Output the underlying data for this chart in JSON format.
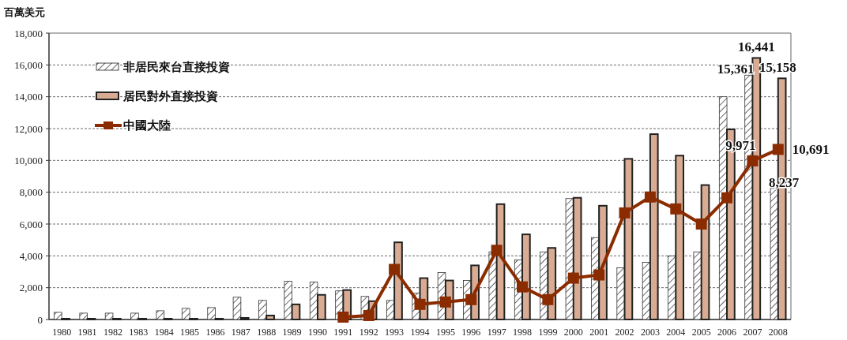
{
  "chart_data": {
    "type": "bar",
    "ylabel": "百萬美元",
    "categories": [
      "1980",
      "1981",
      "1982",
      "1983",
      "1984",
      "1985",
      "1986",
      "1987",
      "1988",
      "1989",
      "1990",
      "1991",
      "1992",
      "1993",
      "1994",
      "1995",
      "1996",
      "1997",
      "1998",
      "1999",
      "2000",
      "2001",
      "2002",
      "2003",
      "2004",
      "2005",
      "2006",
      "2007",
      "2008"
    ],
    "series": [
      {
        "name": "非居民來台直接投資",
        "color": "#333333",
        "values": [
          450,
          400,
          400,
          400,
          550,
          700,
          750,
          1400,
          1200,
          2400,
          2350,
          1800,
          1450,
          1200,
          1650,
          2950,
          2450,
          4250,
          3750,
          4250,
          7600,
          5150,
          3250,
          3600,
          4000,
          4250,
          14000,
          15361,
          8237
        ],
        "value_labels": [
          null,
          null,
          null,
          null,
          null,
          null,
          null,
          null,
          null,
          null,
          null,
          null,
          null,
          null,
          null,
          null,
          null,
          null,
          null,
          null,
          null,
          null,
          null,
          null,
          null,
          null,
          null,
          "15,361",
          "8,237"
        ]
      },
      {
        "name": "居民對外直接投資",
        "color": "#d9ab92",
        "values": [
          50,
          50,
          50,
          50,
          50,
          50,
          50,
          100,
          250,
          950,
          1550,
          1850,
          1150,
          4850,
          2600,
          2450,
          3400,
          7250,
          5350,
          4500,
          7650,
          7150,
          10100,
          11650,
          10300,
          8450,
          11950,
          16441,
          15158
        ],
        "value_labels": [
          null,
          null,
          null,
          null,
          null,
          null,
          null,
          null,
          null,
          null,
          null,
          null,
          null,
          null,
          null,
          null,
          null,
          null,
          null,
          null,
          null,
          null,
          null,
          null,
          null,
          null,
          null,
          "16,441",
          "15,158"
        ]
      },
      {
        "name": "中國大陸",
        "type": "line",
        "color": "#8b2b00",
        "marker": "square",
        "values": [
          null,
          null,
          null,
          null,
          null,
          null,
          null,
          null,
          null,
          null,
          null,
          150,
          250,
          3150,
          950,
          1100,
          1250,
          4350,
          2050,
          1250,
          2600,
          2800,
          6700,
          7700,
          6950,
          6000,
          7650,
          9971,
          10691
        ],
        "value_labels": [
          null,
          null,
          null,
          null,
          null,
          null,
          null,
          null,
          null,
          null,
          null,
          null,
          null,
          null,
          null,
          null,
          null,
          null,
          null,
          null,
          null,
          null,
          null,
          null,
          null,
          null,
          null,
          "9,971",
          "10,691"
        ]
      }
    ],
    "ylim": [
      0,
      18000
    ],
    "yticks": [
      {
        "value": 0,
        "label": "0"
      },
      {
        "value": 2000,
        "label": "2,000"
      },
      {
        "value": 4000,
        "label": "4,000"
      },
      {
        "value": 6000,
        "label": "6,000"
      },
      {
        "value": 8000,
        "label": "8,000"
      },
      {
        "value": 10000,
        "label": "10,000"
      },
      {
        "value": 12000,
        "label": "12,000"
      },
      {
        "value": 14000,
        "label": "14,000"
      },
      {
        "value": 16000,
        "label": "16,000"
      },
      {
        "value": 18000,
        "label": "18,000"
      }
    ],
    "grid": "y",
    "legend": "top left"
  }
}
